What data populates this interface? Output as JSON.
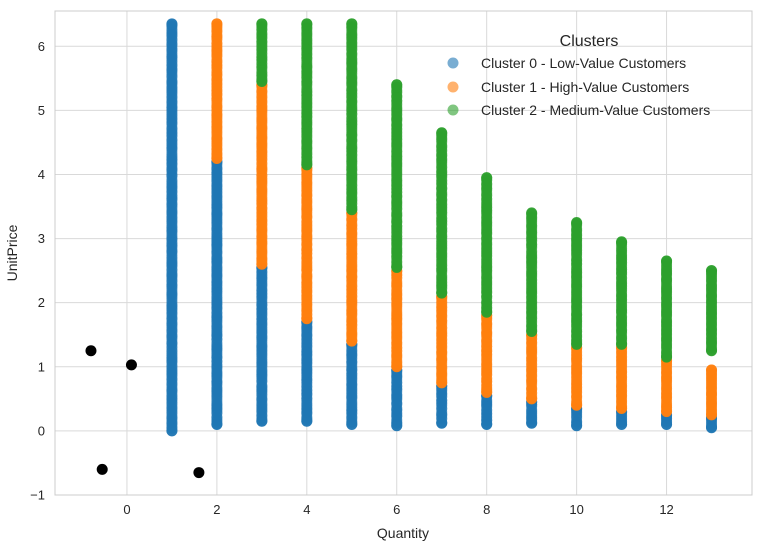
{
  "chart_data": {
    "type": "scatter",
    "title": "",
    "xlabel": "Quantity",
    "ylabel": "UnitPrice",
    "xlim": [
      -1.6,
      13.9
    ],
    "ylim": [
      -1.0,
      6.55
    ],
    "x_ticks": [
      0,
      2,
      4,
      6,
      8,
      10,
      12
    ],
    "y_ticks": [
      -1,
      0,
      1,
      2,
      3,
      4,
      5,
      6
    ],
    "x_tick_labels": [
      "0",
      "2",
      "4",
      "6",
      "8",
      "10",
      "12"
    ],
    "y_tick_labels": [
      "−1",
      "0",
      "1",
      "2",
      "3",
      "4",
      "5",
      "6"
    ],
    "grid": true,
    "legend": {
      "title": "Clusters",
      "placement": "top-right"
    },
    "series": [
      {
        "name": "Cluster 0 - Low-Value Customers",
        "color": "#1f77b4",
        "columns": [
          {
            "x": 1,
            "ymin": 0.0,
            "ymax": 6.35
          },
          {
            "x": 2,
            "ymin": 0.1,
            "ymax": 4.2
          },
          {
            "x": 3,
            "ymin": 0.15,
            "ymax": 2.55
          },
          {
            "x": 4,
            "ymin": 0.15,
            "ymax": 1.7
          },
          {
            "x": 5,
            "ymin": 0.1,
            "ymax": 1.35
          },
          {
            "x": 6,
            "ymin": 0.08,
            "ymax": 0.95
          },
          {
            "x": 7,
            "ymin": 0.12,
            "ymax": 0.7
          },
          {
            "x": 8,
            "ymin": 0.1,
            "ymax": 0.55
          },
          {
            "x": 9,
            "ymin": 0.12,
            "ymax": 0.45
          },
          {
            "x": 10,
            "ymin": 0.08,
            "ymax": 0.35
          },
          {
            "x": 11,
            "ymin": 0.1,
            "ymax": 0.3
          },
          {
            "x": 12,
            "ymin": 0.1,
            "ymax": 0.25
          },
          {
            "x": 13,
            "ymin": 0.05,
            "ymax": 0.2
          }
        ]
      },
      {
        "name": "Cluster 1 - High-Value Customers",
        "color": "#ff7f0e",
        "columns": [
          {
            "x": 2,
            "ymin": 4.25,
            "ymax": 6.35
          },
          {
            "x": 3,
            "ymin": 2.6,
            "ymax": 5.4
          },
          {
            "x": 4,
            "ymin": 1.75,
            "ymax": 4.1
          },
          {
            "x": 5,
            "ymin": 1.4,
            "ymax": 3.4
          },
          {
            "x": 6,
            "ymin": 1.0,
            "ymax": 2.5
          },
          {
            "x": 7,
            "ymin": 0.75,
            "ymax": 2.1
          },
          {
            "x": 8,
            "ymin": 0.6,
            "ymax": 1.8
          },
          {
            "x": 9,
            "ymin": 0.5,
            "ymax": 1.5
          },
          {
            "x": 10,
            "ymin": 0.4,
            "ymax": 1.3
          },
          {
            "x": 11,
            "ymin": 0.35,
            "ymax": 1.3
          },
          {
            "x": 12,
            "ymin": 0.3,
            "ymax": 1.1
          },
          {
            "x": 13,
            "ymin": 0.25,
            "ymax": 0.95
          }
        ]
      },
      {
        "name": "Cluster 2 - Medium-Value Customers",
        "color": "#2ca02c",
        "columns": [
          {
            "x": 3,
            "ymin": 5.45,
            "ymax": 6.35
          },
          {
            "x": 4,
            "ymin": 4.15,
            "ymax": 6.35
          },
          {
            "x": 5,
            "ymin": 3.45,
            "ymax": 6.35
          },
          {
            "x": 6,
            "ymin": 2.55,
            "ymax": 5.4
          },
          {
            "x": 7,
            "ymin": 2.15,
            "ymax": 4.65
          },
          {
            "x": 8,
            "ymin": 1.85,
            "ymax": 3.95
          },
          {
            "x": 9,
            "ymin": 1.55,
            "ymax": 3.4
          },
          {
            "x": 10,
            "ymin": 1.35,
            "ymax": 3.25
          },
          {
            "x": 11,
            "ymin": 1.35,
            "ymax": 2.95
          },
          {
            "x": 12,
            "ymin": 1.15,
            "ymax": 2.65
          },
          {
            "x": 13,
            "ymin": 1.25,
            "ymax": 2.5
          }
        ]
      }
    ],
    "extra_points": {
      "color": "#000000",
      "points": [
        {
          "x": -0.8,
          "y": 1.25
        },
        {
          "x": 0.1,
          "y": 1.03
        },
        {
          "x": -0.55,
          "y": -0.6
        },
        {
          "x": 1.6,
          "y": -0.65
        }
      ]
    }
  }
}
